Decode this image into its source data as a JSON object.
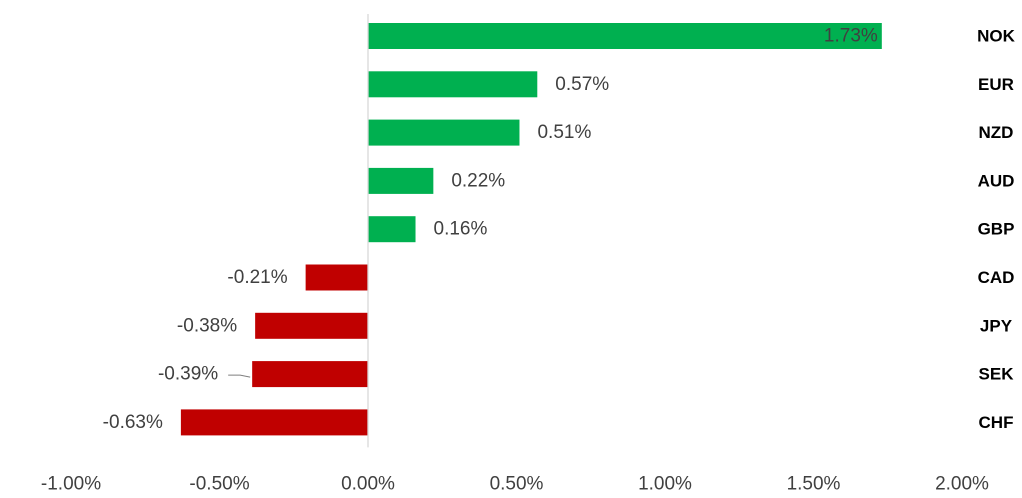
{
  "chart_data": {
    "type": "bar",
    "orientation": "horizontal",
    "categories": [
      "NOK",
      "EUR",
      "NZD",
      "AUD",
      "GBP",
      "CAD",
      "JPY",
      "SEK",
      "CHF"
    ],
    "values": [
      1.73,
      0.57,
      0.51,
      0.22,
      0.16,
      -0.21,
      -0.38,
      -0.39,
      -0.63
    ],
    "value_labels": [
      "1.73%",
      "0.57%",
      "0.51%",
      "0.22%",
      "0.16%",
      "-0.21%",
      "-0.38%",
      "-0.39%",
      "-0.63%"
    ],
    "xlim": [
      -1.0,
      2.0
    ],
    "x_ticks": [
      -1.0,
      -0.5,
      0.0,
      0.5,
      1.0,
      1.5,
      2.0
    ],
    "x_tick_labels": [
      "-1.00%",
      "-0.50%",
      "0.00%",
      "0.50%",
      "1.00%",
      "1.50%",
      "2.00%"
    ],
    "title": "",
    "xlabel": "",
    "ylabel": "",
    "grid": false,
    "colors": {
      "positive": "#00b050",
      "negative": "#c00000",
      "axis": "#d9d9d9",
      "leader_line": "#7f7f7f"
    }
  }
}
